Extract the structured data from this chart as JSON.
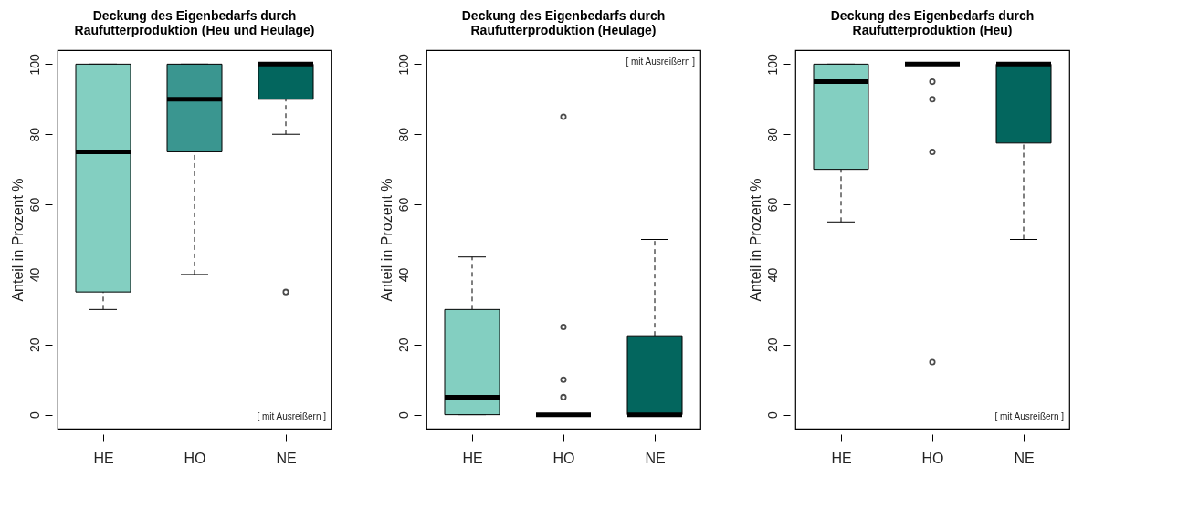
{
  "chart_data": [
    {
      "type": "box",
      "title": "Deckung des Eigenbedarfs durch\nRaufutterproduktion (Heu und Heulage)",
      "ylabel": "Anteil in Prozent %",
      "categories": [
        "HE",
        "HO",
        "NE"
      ],
      "colors": [
        "#83cfc1",
        "#3a9690",
        "#03665e"
      ],
      "boxes": [
        {
          "low": 30,
          "q1": 35,
          "median": 75,
          "q3": 100,
          "high": 100
        },
        {
          "low": 40,
          "q1": 75,
          "median": 90,
          "q3": 100,
          "high": 100
        },
        {
          "low": 80,
          "q1": 90,
          "median": 100,
          "q3": 100,
          "high": 100,
          "outliers": [
            35
          ]
        }
      ],
      "ylim": [
        -4,
        104
      ],
      "yticks": [
        0,
        20,
        40,
        60,
        80,
        100
      ],
      "annotations": [
        "[ mit Ausreißern ]"
      ]
    },
    {
      "type": "box",
      "title": "Deckung des Eigenbedarfs durch\nRaufutterproduktion (Heulage)",
      "ylabel": "Anteil in Prozent %",
      "categories": [
        "HE",
        "HO",
        "NE"
      ],
      "colors": [
        "#83cfc1",
        "#3a9690",
        "#03665e"
      ],
      "boxes": [
        {
          "low": 0,
          "q1": 0,
          "median": 5,
          "q3": 30,
          "high": 45
        },
        {
          "low": 0,
          "q1": 0,
          "median": 0,
          "q3": 0,
          "high": 0,
          "outliers": [
            85,
            25,
            10,
            5
          ]
        },
        {
          "low": 0,
          "q1": 0,
          "median": 0,
          "q3": 22.5,
          "high": 50
        }
      ],
      "ylim": [
        -4,
        104
      ],
      "yticks": [
        0,
        20,
        40,
        60,
        80,
        100
      ],
      "annotations": [
        "[ mit Ausreißern ]"
      ]
    },
    {
      "type": "box",
      "title": "Deckung des Eigenbedarfs durch\nRaufutterproduktion (Heu)",
      "ylabel": "Anteil in Prozent %",
      "categories": [
        "HE",
        "HO",
        "NE"
      ],
      "colors": [
        "#83cfc1",
        "#3a9690",
        "#03665e"
      ],
      "boxes": [
        {
          "low": 55,
          "q1": 70,
          "median": 95,
          "q3": 100,
          "high": 100
        },
        {
          "low": 100,
          "q1": 100,
          "median": 100,
          "q3": 100,
          "high": 100,
          "outliers": [
            95,
            90,
            75,
            15
          ]
        },
        {
          "low": 50,
          "q1": 77.5,
          "median": 100,
          "q3": 100,
          "high": 100
        }
      ],
      "ylim": [
        -4,
        104
      ],
      "yticks": [
        0,
        20,
        40,
        60,
        80,
        100
      ],
      "annotations": [
        "[ mit Ausreißern ]"
      ]
    }
  ]
}
